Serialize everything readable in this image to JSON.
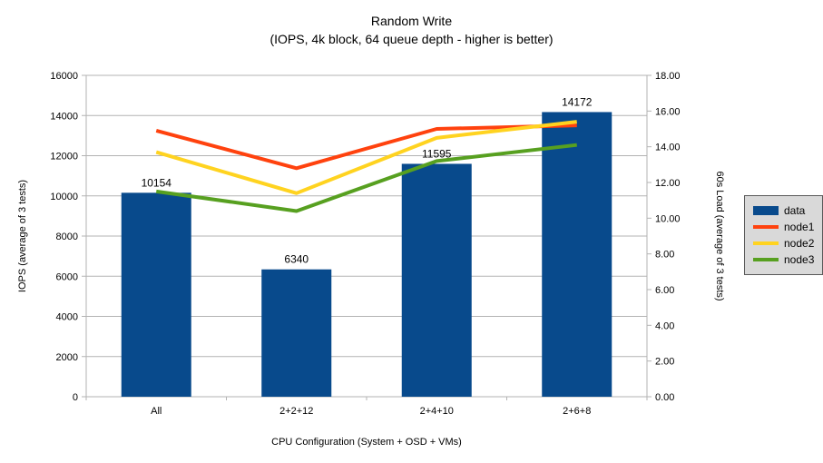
{
  "chart_data": {
    "type": "bar+line",
    "title": "Random Write",
    "subtitle": "(IOPS, 4k block, 64 queue depth - higher is better)",
    "xlabel": "CPU Configuration (System + OSD + VMs)",
    "categories": [
      "All",
      "2+2+12",
      "2+4+10",
      "2+6+8"
    ],
    "series": [
      {
        "name": "data",
        "type": "bar",
        "axis": "left",
        "color": "#084a8c",
        "values": [
          10154,
          6340,
          11595,
          14172
        ],
        "labels": [
          "10154",
          "6340",
          "11595",
          "14172"
        ]
      },
      {
        "name": "node1",
        "type": "line",
        "axis": "right",
        "color": "#ff420e",
        "values": [
          14.9,
          12.8,
          15.0,
          15.2
        ]
      },
      {
        "name": "node2",
        "type": "line",
        "axis": "right",
        "color": "#ffd320",
        "values": [
          13.7,
          11.4,
          14.5,
          15.4
        ]
      },
      {
        "name": "node3",
        "type": "line",
        "axis": "right",
        "color": "#57a020",
        "values": [
          11.5,
          10.4,
          13.2,
          14.1
        ]
      }
    ],
    "left_axis": {
      "title": "IOPS (average of 3 tests)",
      "min": 0,
      "max": 16000,
      "step": 2000,
      "decimals": 0
    },
    "right_axis": {
      "title": "60s Load (average of 3 tests)",
      "min": 0,
      "max": 18,
      "step": 2,
      "decimals": 2
    },
    "grid": true,
    "legend_position": "right",
    "colors": {
      "grid": "#b3b3b3",
      "axis": "#b3b3b3",
      "text": "#000000",
      "legend_bg": "#d9d9d9",
      "legend_border": "#595959",
      "background": "#ffffff"
    }
  }
}
